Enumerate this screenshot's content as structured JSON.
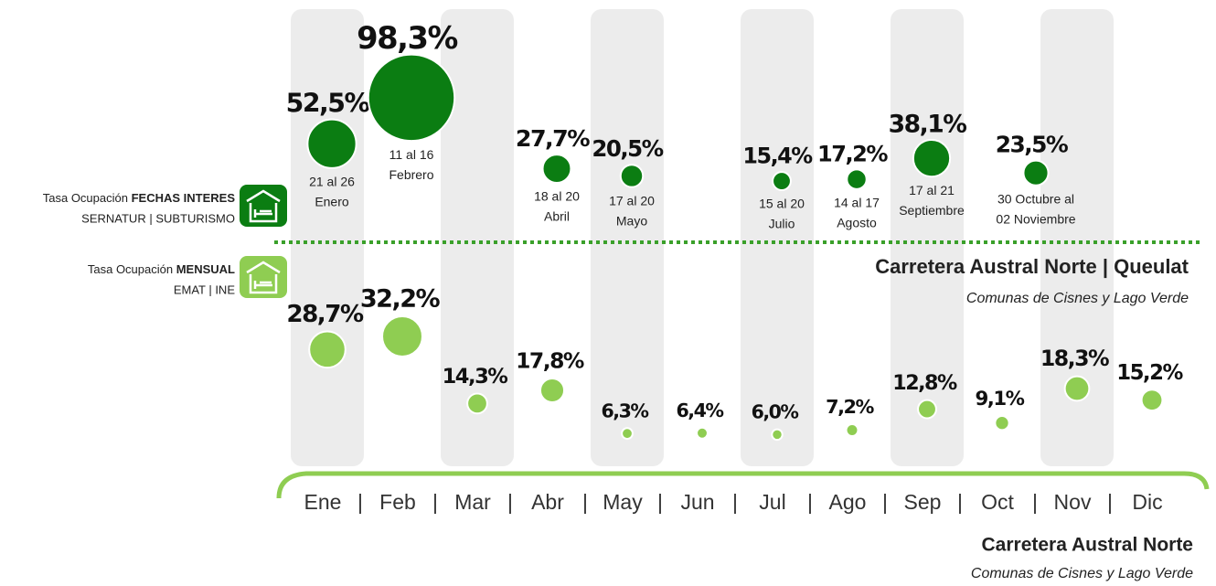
{
  "chart_data": {
    "type": "bubble",
    "categories": [
      "Ene",
      "Feb",
      "Mar",
      "Abr",
      "May",
      "Jun",
      "Jul",
      "Ago",
      "Sep",
      "Oct",
      "Nov",
      "Dic"
    ],
    "separator": "|",
    "title": "Carretera Austral Norte | Queulat",
    "subtitle": "Comunas de Cisnes y Lago Verde",
    "footer_title": "Carretera Austral Norte",
    "footer_subtitle": "Comunas de Cisnes y Lago Verde",
    "legend": [
      {
        "label": "Tasa Ocupación",
        "label_bold": "FECHAS INTERES",
        "source": "SERNATUR | SUBTURISMO",
        "color": "#0b7d12"
      },
      {
        "label": "Tasa Ocupación",
        "label_bold": "MENSUAL",
        "source": "EMAT | INE",
        "color": "#8fcd52"
      }
    ],
    "series": [
      {
        "color": "#0b7d12",
        "values": [
          52.5,
          98.3,
          null,
          27.7,
          20.5,
          null,
          15.4,
          17.2,
          38.1,
          null,
          23.5,
          null
        ],
        "value_labels": [
          "52,5%",
          "98,3%",
          null,
          "27,7%",
          "20,5%",
          null,
          "15,4%",
          "17,2%",
          "38,1%",
          null,
          "23,5%",
          null
        ],
        "dates": [
          [
            "21 al 26",
            "Enero"
          ],
          [
            "11 al 16",
            "Febrero"
          ],
          null,
          [
            "18 al 20",
            "Abril"
          ],
          [
            "17 al 20",
            "Mayo"
          ],
          null,
          [
            "15 al 20",
            "Julio"
          ],
          [
            "14 al 17",
            "Agosto"
          ],
          [
            "17 al 21",
            "Septiembre"
          ],
          null,
          [
            "30 Octubre al",
            "02 Noviembre"
          ],
          null
        ]
      },
      {
        "color": "#8fcd52",
        "values": [
          28.7,
          32.2,
          14.3,
          17.8,
          6.3,
          6.4,
          6.0,
          7.2,
          12.8,
          9.1,
          18.3,
          15.2
        ],
        "value_labels": [
          "28,7%",
          "32,2%",
          "14,3%",
          "17,8%",
          "6,3%",
          "6,4%",
          "6,0%",
          "7,2%",
          "12,8%",
          "9,1%",
          "18,3%",
          "15,2%"
        ]
      }
    ]
  }
}
